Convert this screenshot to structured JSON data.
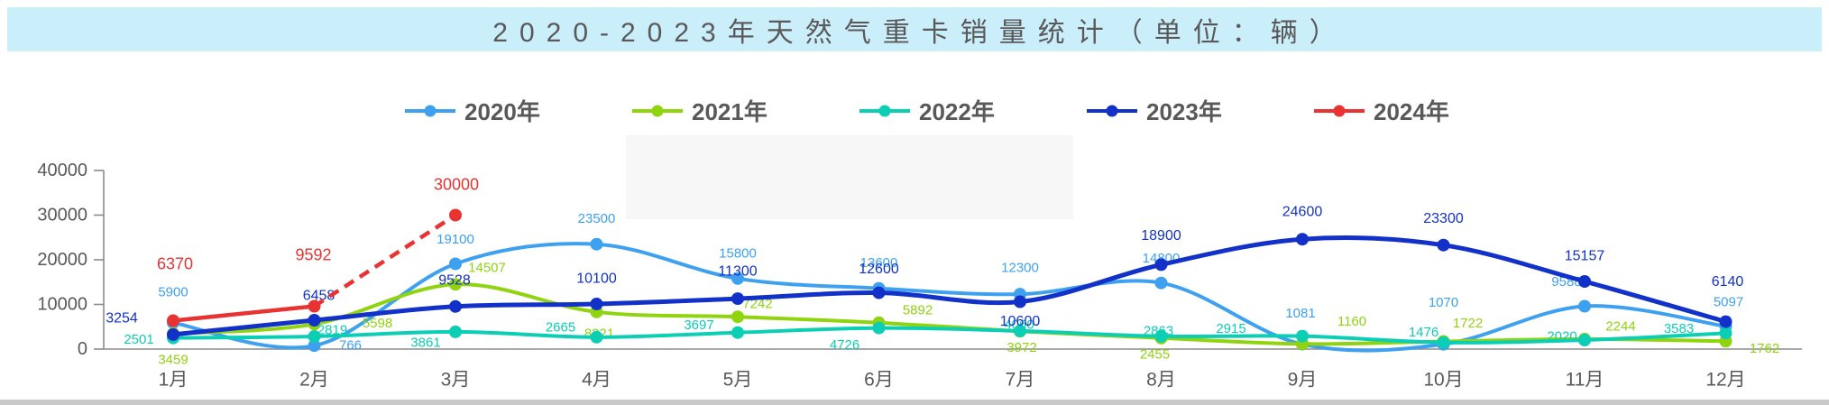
{
  "title": {
    "text": "2020-2023年天然气重卡销量统计（单位：辆）"
  },
  "colors": {
    "title_bar_bg": "#cbeefb",
    "title_text": "#595959",
    "legend_text": "#595959",
    "axis_text": "#595959",
    "axis_line": "#8c8c8c",
    "watermark_patch": "#f7f7f7",
    "bottom_strip": "#c9c9c9"
  },
  "chart_data": {
    "type": "line",
    "title": "2020-2023年天然气重卡销量统计（单位：辆）",
    "xlabel": "",
    "ylabel": "",
    "categories": [
      "1月",
      "2月",
      "3月",
      "4月",
      "5月",
      "6月",
      "7月",
      "8月",
      "9月",
      "10月",
      "11月",
      "12月"
    ],
    "y_ticks": [
      0,
      10000,
      20000,
      30000,
      40000
    ],
    "ylim": [
      0,
      40000
    ],
    "grid": false,
    "legend_position": "top",
    "series": [
      {
        "name": "2020年",
        "color": "#3ea1f0",
        "smooth": true,
        "line_width": 4,
        "label_size": 15,
        "values": [
          5900,
          766,
          19100,
          23500,
          15800,
          13600,
          12300,
          14800,
          1081,
          1070,
          9588,
          5097
        ],
        "label_offsets": [
          [
            0,
            -34
          ],
          [
            40,
            0
          ],
          [
            0,
            -27
          ],
          [
            0,
            -28
          ],
          [
            0,
            -28
          ],
          [
            0,
            -28
          ],
          [
            0,
            -29
          ],
          [
            0,
            -27
          ],
          [
            -2,
            -34
          ],
          [
            0,
            -46
          ],
          [
            -20,
            -27
          ],
          [
            3,
            -27
          ]
        ]
      },
      {
        "name": "2021年",
        "color": "#8fd40e",
        "smooth": true,
        "line_width": 4,
        "label_size": 15,
        "values": [
          3459,
          5598,
          14507,
          8321,
          7242,
          5892,
          3972,
          2455,
          1160,
          1722,
          2244,
          1762
        ],
        "label_offsets": [
          [
            0,
            29
          ],
          [
            70,
            -1
          ],
          [
            35,
            -18
          ],
          [
            3,
            24
          ],
          [
            22,
            -14
          ],
          [
            43,
            -14
          ],
          [
            2,
            18
          ],
          [
            -7,
            18
          ],
          [
            55,
            -25
          ],
          [
            27,
            -20
          ],
          [
            40,
            -14
          ],
          [
            43,
            8
          ]
        ]
      },
      {
        "name": "2022年",
        "color": "#0cceb5",
        "smooth": true,
        "line_width": 4,
        "label_size": 15,
        "values": [
          2501,
          2819,
          3861,
          2665,
          3697,
          4726,
          4060,
          2863,
          2915,
          1476,
          2020,
          3583
        ],
        "label_offsets": [
          [
            -38,
            2
          ],
          [
            20,
            -7
          ],
          [
            -33,
            12
          ],
          [
            -40,
            -11
          ],
          [
            -43,
            -8
          ],
          [
            -38,
            19
          ],
          [
            -1,
            -7
          ],
          [
            -3,
            -6
          ],
          [
            -79,
            -8
          ],
          [
            -22,
            -11
          ],
          [
            -25,
            -4
          ],
          [
            -52,
            -5
          ]
        ]
      },
      {
        "name": "2023年",
        "color": "#1231c8",
        "smooth": true,
        "line_width": 5,
        "label_size": 16,
        "values": [
          3254,
          6458,
          9528,
          10100,
          11300,
          12600,
          10600,
          18900,
          24600,
          23300,
          15157,
          6140
        ],
        "label_offsets": [
          [
            -57,
            -18
          ],
          [
            5,
            -27
          ],
          [
            -1,
            -29
          ],
          [
            0,
            -28
          ],
          [
            0,
            -30
          ],
          [
            0,
            -26
          ],
          [
            0,
            22
          ],
          [
            0,
            -32
          ],
          [
            0,
            -30
          ],
          [
            0,
            -29
          ],
          [
            0,
            -28
          ],
          [
            2,
            -44
          ]
        ]
      },
      {
        "name": "2024年",
        "color": "#e93333",
        "smooth": false,
        "line_width": 4.5,
        "label_size": 18,
        "values": [
          6370,
          9592,
          30000
        ],
        "dashed_from_index": 1,
        "label_offsets": [
          [
            2,
            -63
          ],
          [
            -1,
            -57
          ],
          [
            1,
            -34
          ]
        ]
      }
    ]
  }
}
